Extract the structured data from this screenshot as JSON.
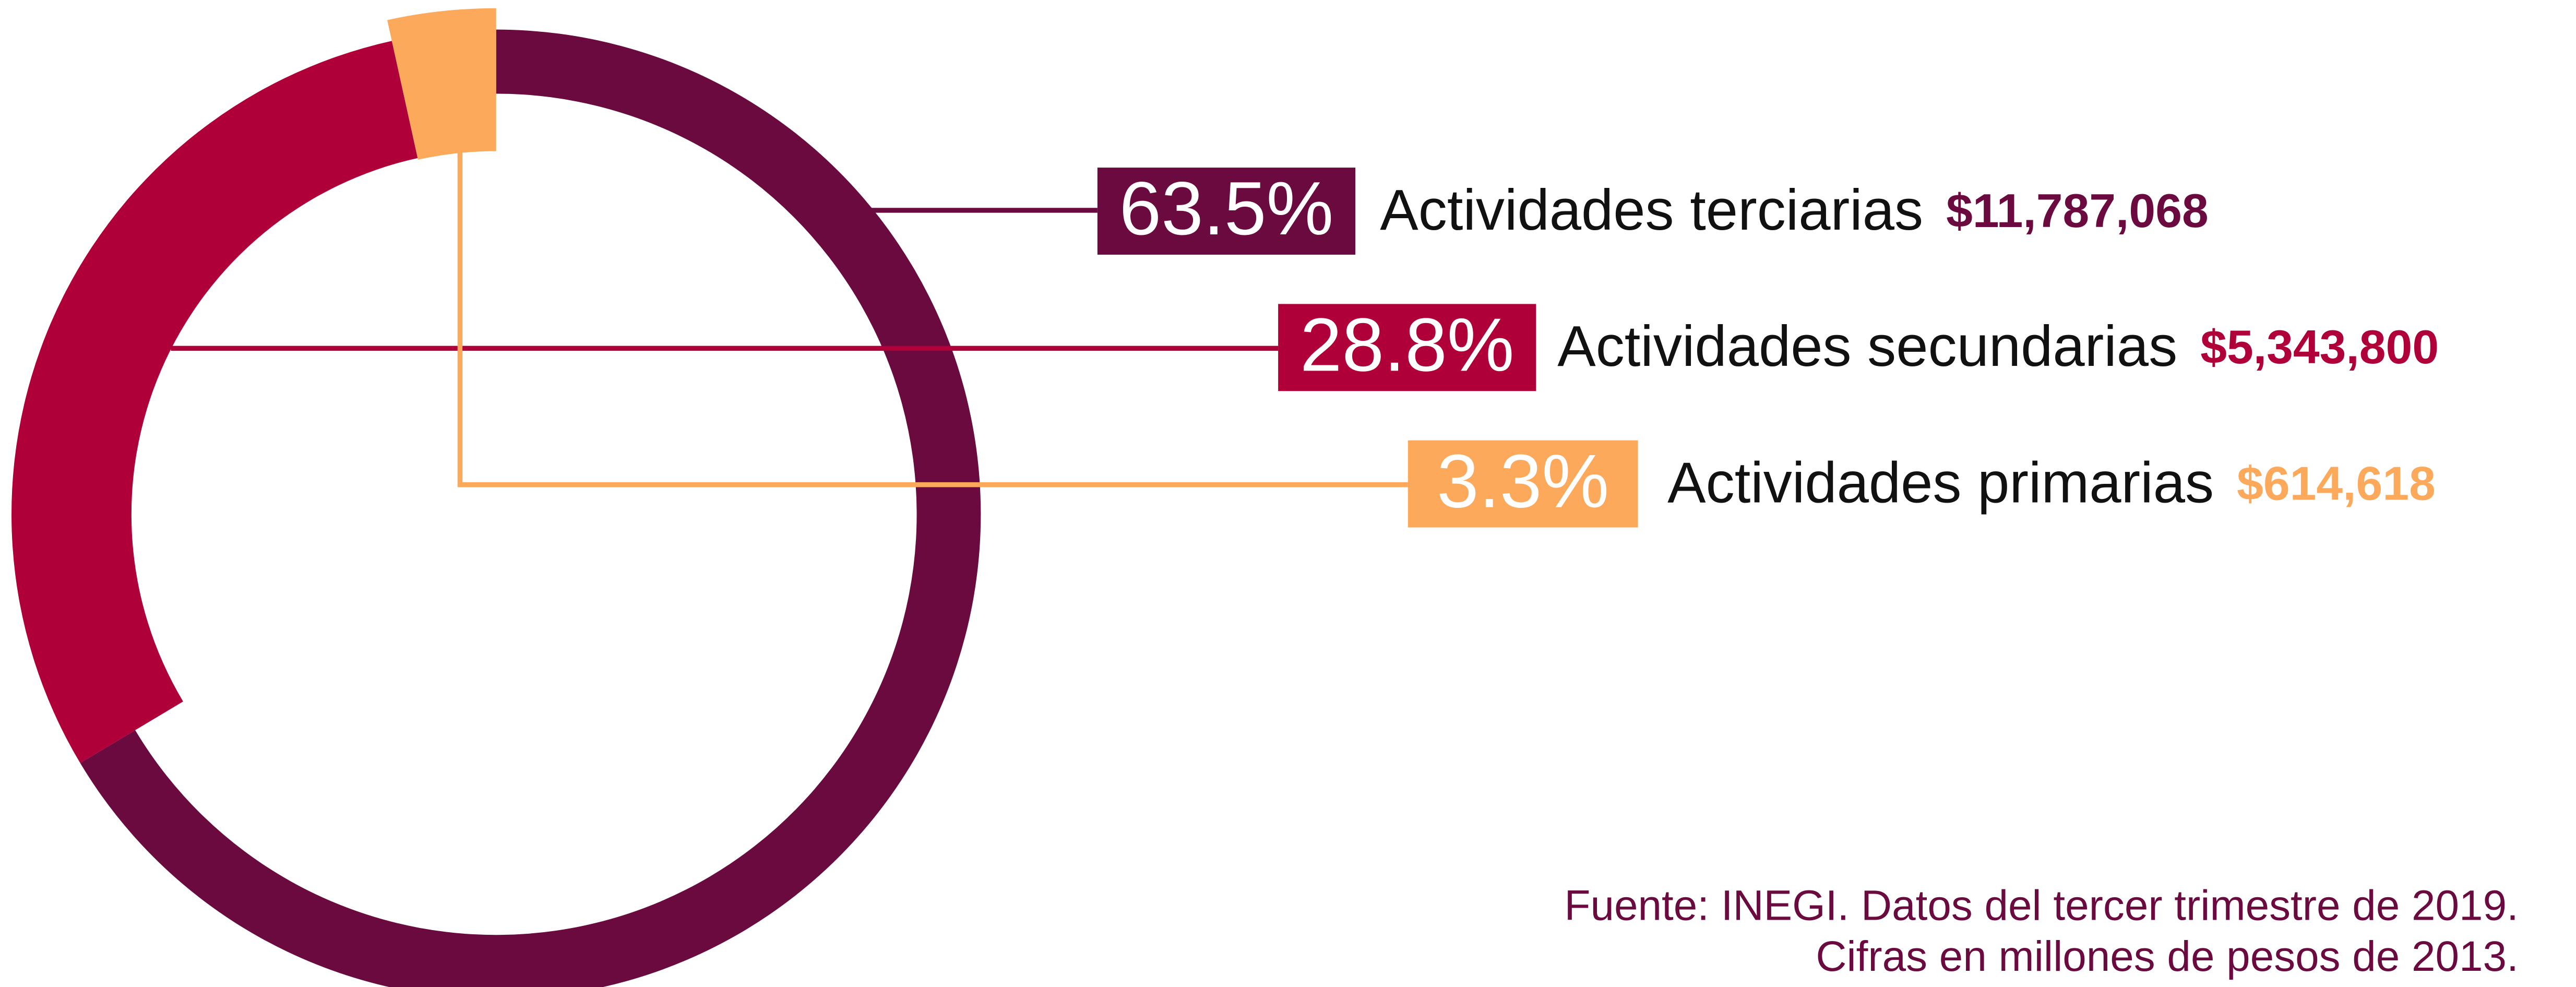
{
  "chart_data": {
    "type": "donut",
    "categories": [
      "Actividades terciarias",
      "Actividades secundarias",
      "Actividades primarias"
    ],
    "values": [
      63.5,
      28.8,
      3.3
    ],
    "value_labels": [
      "63.5%",
      "28.8%",
      "3.3%"
    ],
    "amounts": [
      11787068,
      5343800,
      614618
    ],
    "amount_labels": [
      "$11,787,068",
      "$5,343,800",
      "$614,618"
    ],
    "colors": [
      "#6b0a3e",
      "#b0003a",
      "#fca95c"
    ],
    "notes": [
      "Fuente: INEGI. Datos del tercer trimestre de 2019.",
      "Cifras en millones de pesos de 2013."
    ]
  }
}
